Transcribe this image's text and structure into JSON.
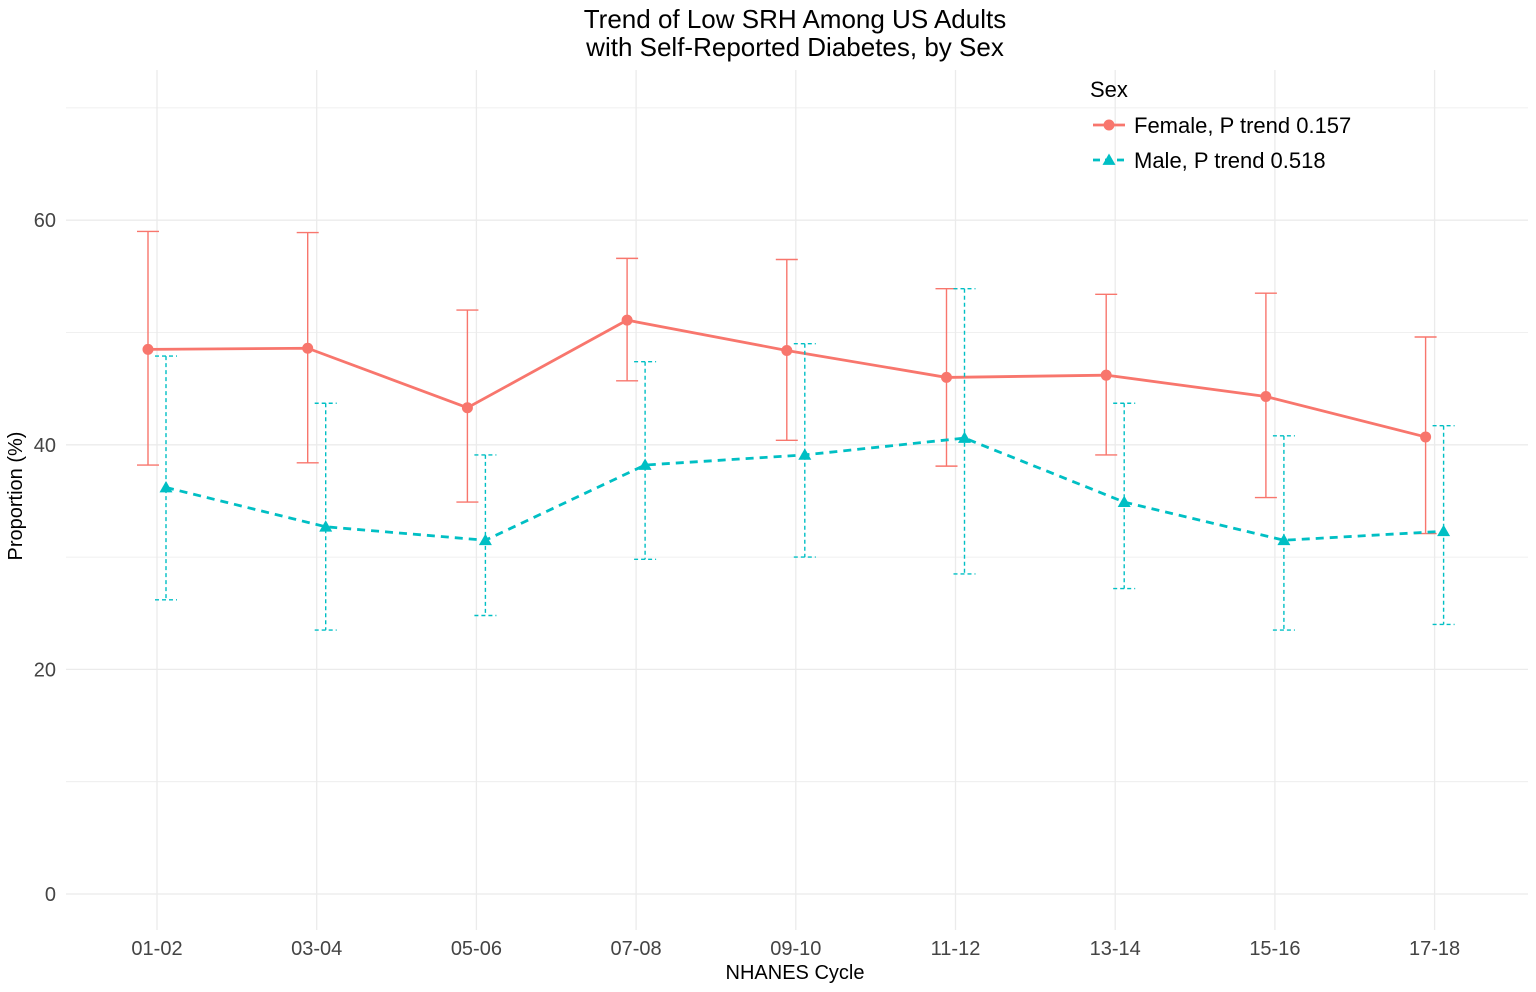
{
  "chart_data": {
    "type": "line",
    "title": [
      "Trend of Low SRH Among US Adults",
      "with Self-Reported Diabetes, by Sex"
    ],
    "xlabel": "NHANES Cycle",
    "ylabel": "Proportion (%)",
    "categories": [
      "01-02",
      "03-04",
      "05-06",
      "07-08",
      "09-10",
      "11-12",
      "13-14",
      "15-16",
      "17-18"
    ],
    "ylim": [
      0,
      70
    ],
    "yticks": [
      0,
      20,
      40,
      60
    ],
    "grid": true,
    "legend": {
      "title": "Sex",
      "position": "top-right"
    },
    "series": [
      {
        "name": "Female, P trend 0.157",
        "color": "#F8766D",
        "linetype": "solid",
        "marker": "circle",
        "values": [
          48.5,
          48.6,
          43.3,
          51.1,
          48.4,
          46.0,
          46.2,
          44.3,
          40.7
        ],
        "lower": [
          38.2,
          38.4,
          34.9,
          45.7,
          40.4,
          38.1,
          39.1,
          35.3,
          32.1
        ],
        "upper": [
          59.0,
          58.9,
          52.0,
          56.6,
          56.5,
          53.9,
          53.4,
          53.5,
          49.6
        ]
      },
      {
        "name": "Male, P trend 0.518",
        "color": "#00BFC4",
        "linetype": "dashed",
        "marker": "triangle",
        "values": [
          36.2,
          32.7,
          31.5,
          38.2,
          39.1,
          40.6,
          34.9,
          31.5,
          32.3
        ],
        "lower": [
          26.2,
          23.5,
          24.8,
          29.8,
          30.0,
          28.5,
          27.2,
          23.5,
          24.0
        ],
        "upper": [
          47.9,
          43.7,
          39.1,
          47.4,
          49.0,
          53.9,
          43.7,
          40.8,
          41.7
        ]
      }
    ]
  }
}
